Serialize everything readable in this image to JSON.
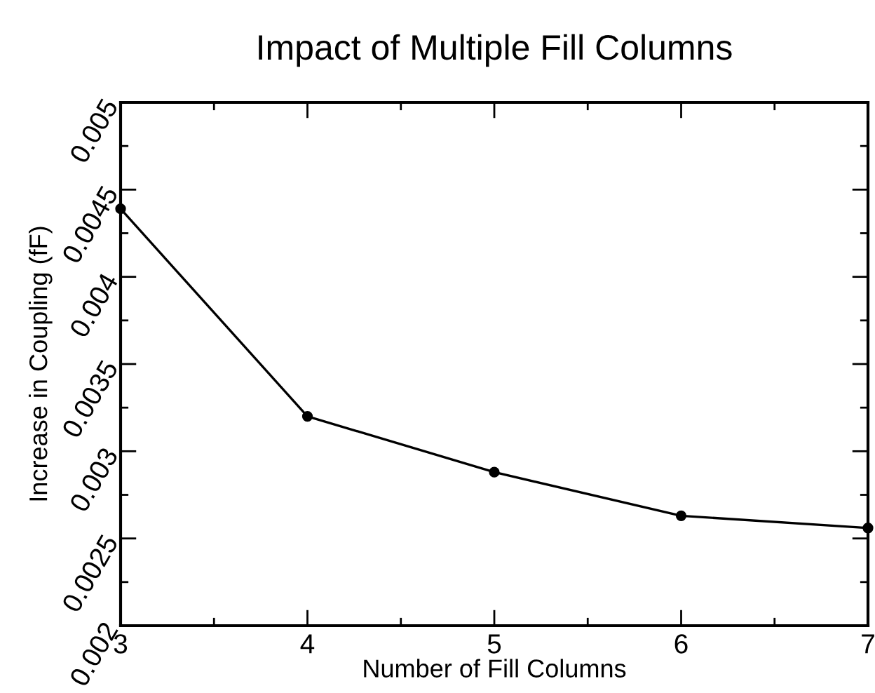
{
  "chart_data": {
    "type": "line",
    "title": "Impact of Multiple Fill Columns",
    "xlabel": "Number of Fill Columns",
    "ylabel": "Increase in Coupling (fF)",
    "x": [
      3,
      4,
      5,
      6,
      7
    ],
    "series": [
      {
        "color": "#000000",
        "values": [
          0.00439,
          0.0032,
          0.00288,
          0.00263,
          0.00256
        ]
      }
    ],
    "xlim": [
      3,
      7
    ],
    "xticks": [
      3,
      4,
      5,
      6,
      7
    ],
    "ylim": [
      0.002,
      0.005
    ],
    "yticks": [
      0.002,
      0.0025,
      0.003,
      0.0035,
      0.004,
      0.0045,
      0.005
    ],
    "marker": "circle",
    "line_style": "solid",
    "grid": false
  }
}
